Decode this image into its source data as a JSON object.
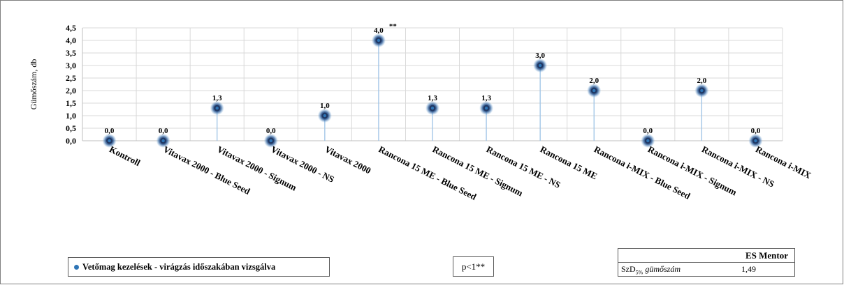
{
  "chart_data": {
    "type": "scatter",
    "style": "lollipop",
    "ylabel": "Gümőszám, db",
    "ylim": [
      0,
      4.5
    ],
    "yticks": [
      "0,0",
      "0,5",
      "1,0",
      "1,5",
      "2,0",
      "2,5",
      "3,0",
      "3,5",
      "4,0",
      "4,5"
    ],
    "grid": true,
    "categories": [
      "Kontroll",
      "Vitavax 2000 - Blue Seed",
      "Vitavax 2000 - Signum",
      "Vitavax 2000 - NS",
      "Vitavax 2000",
      "Rancona 15 ME - Blue Seed",
      "Rancona 15 ME - Signum",
      "Rancona 15 ME - NS",
      "Rancona 15 ME",
      "Rancona i-MIX - Blue Seed",
      "Rancona i-MIX - Signum",
      "Rancona i-MIX - NS",
      "Rancona i-MIX"
    ],
    "series": [
      {
        "name": "Vetőmag kezelések - virágzás időszakában vizsgálva",
        "values": [
          0.0,
          0.0,
          1.3,
          0.0,
          1.0,
          4.0,
          1.3,
          1.3,
          3.0,
          2.0,
          0.0,
          2.0,
          0.0
        ],
        "labels": [
          "0,0",
          "0,0",
          "1,3",
          "0,0",
          "1,0",
          "4,0",
          "1,3",
          "1,3",
          "3,0",
          "2,0",
          "0,0",
          "2,0",
          "0,0"
        ]
      }
    ],
    "annotations": [
      {
        "category_index": 5,
        "text": "**"
      }
    ],
    "colors": {
      "marker": "#2e75b6",
      "stem": "#9dc3e6",
      "grid": "#d9d9d9"
    }
  },
  "legend": {
    "label": "Vetőmag kezelések - virágzás időszakában vizsgálva"
  },
  "significance": {
    "label": "p<1**"
  },
  "stats_table": {
    "header": "ES Mentor",
    "row_label_prefix": "SzD",
    "row_label_sub": "5%",
    "row_label_suffix": " gümőszám",
    "row_value": "1,49"
  }
}
